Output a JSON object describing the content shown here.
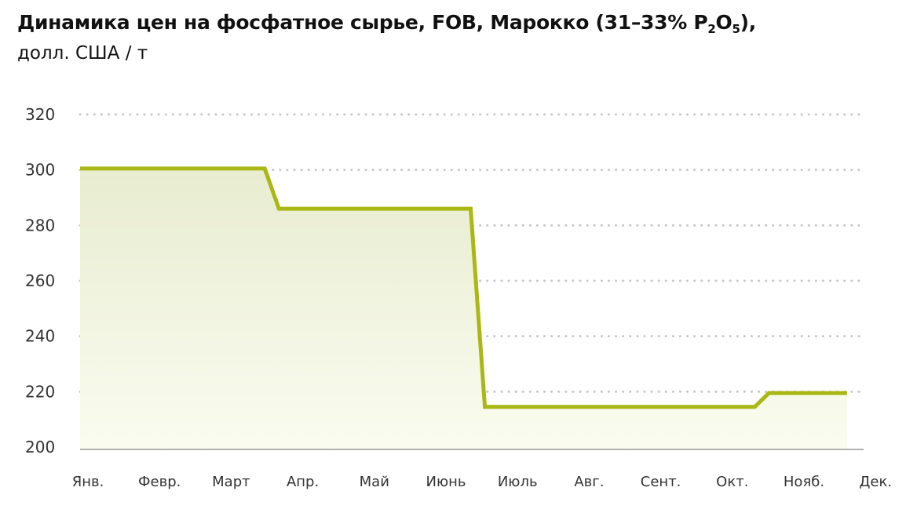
{
  "chart_data": {
    "type": "line",
    "title_main": "Динамика цен на фосфатное сырье, FOB, Марокко (31–33% P",
    "title_sub1": "2",
    "title_mid": "O",
    "title_sub2": "5",
    "title_end": "),",
    "subtitle": "долл. США / т",
    "categories": [
      "Янв.",
      "Февр.",
      "Март",
      "Апр.",
      "Май",
      "Июнь",
      "Июль",
      "Авг.",
      "Сент.",
      "Окт.",
      "Нояб.",
      "Дек."
    ],
    "points": [
      {
        "x": 0,
        "y": 300.5
      },
      {
        "x": 2.6,
        "y": 300.5
      },
      {
        "x": 2.8,
        "y": 286
      },
      {
        "x": 5.5,
        "y": 286
      },
      {
        "x": 5.7,
        "y": 214.5
      },
      {
        "x": 9.5,
        "y": 214.5
      },
      {
        "x": 9.7,
        "y": 219.5
      },
      {
        "x": 10.8,
        "y": 219.5
      }
    ],
    "yticks": [
      200,
      220,
      240,
      260,
      280,
      300,
      320
    ],
    "ylim": [
      200,
      320
    ],
    "grid": true,
    "colors": {
      "line": "#a9b814",
      "grid": "#c8c8c8",
      "axis": "#999999",
      "area_top": "#e8ecd0",
      "area_bottom": "#fafcf0"
    }
  }
}
